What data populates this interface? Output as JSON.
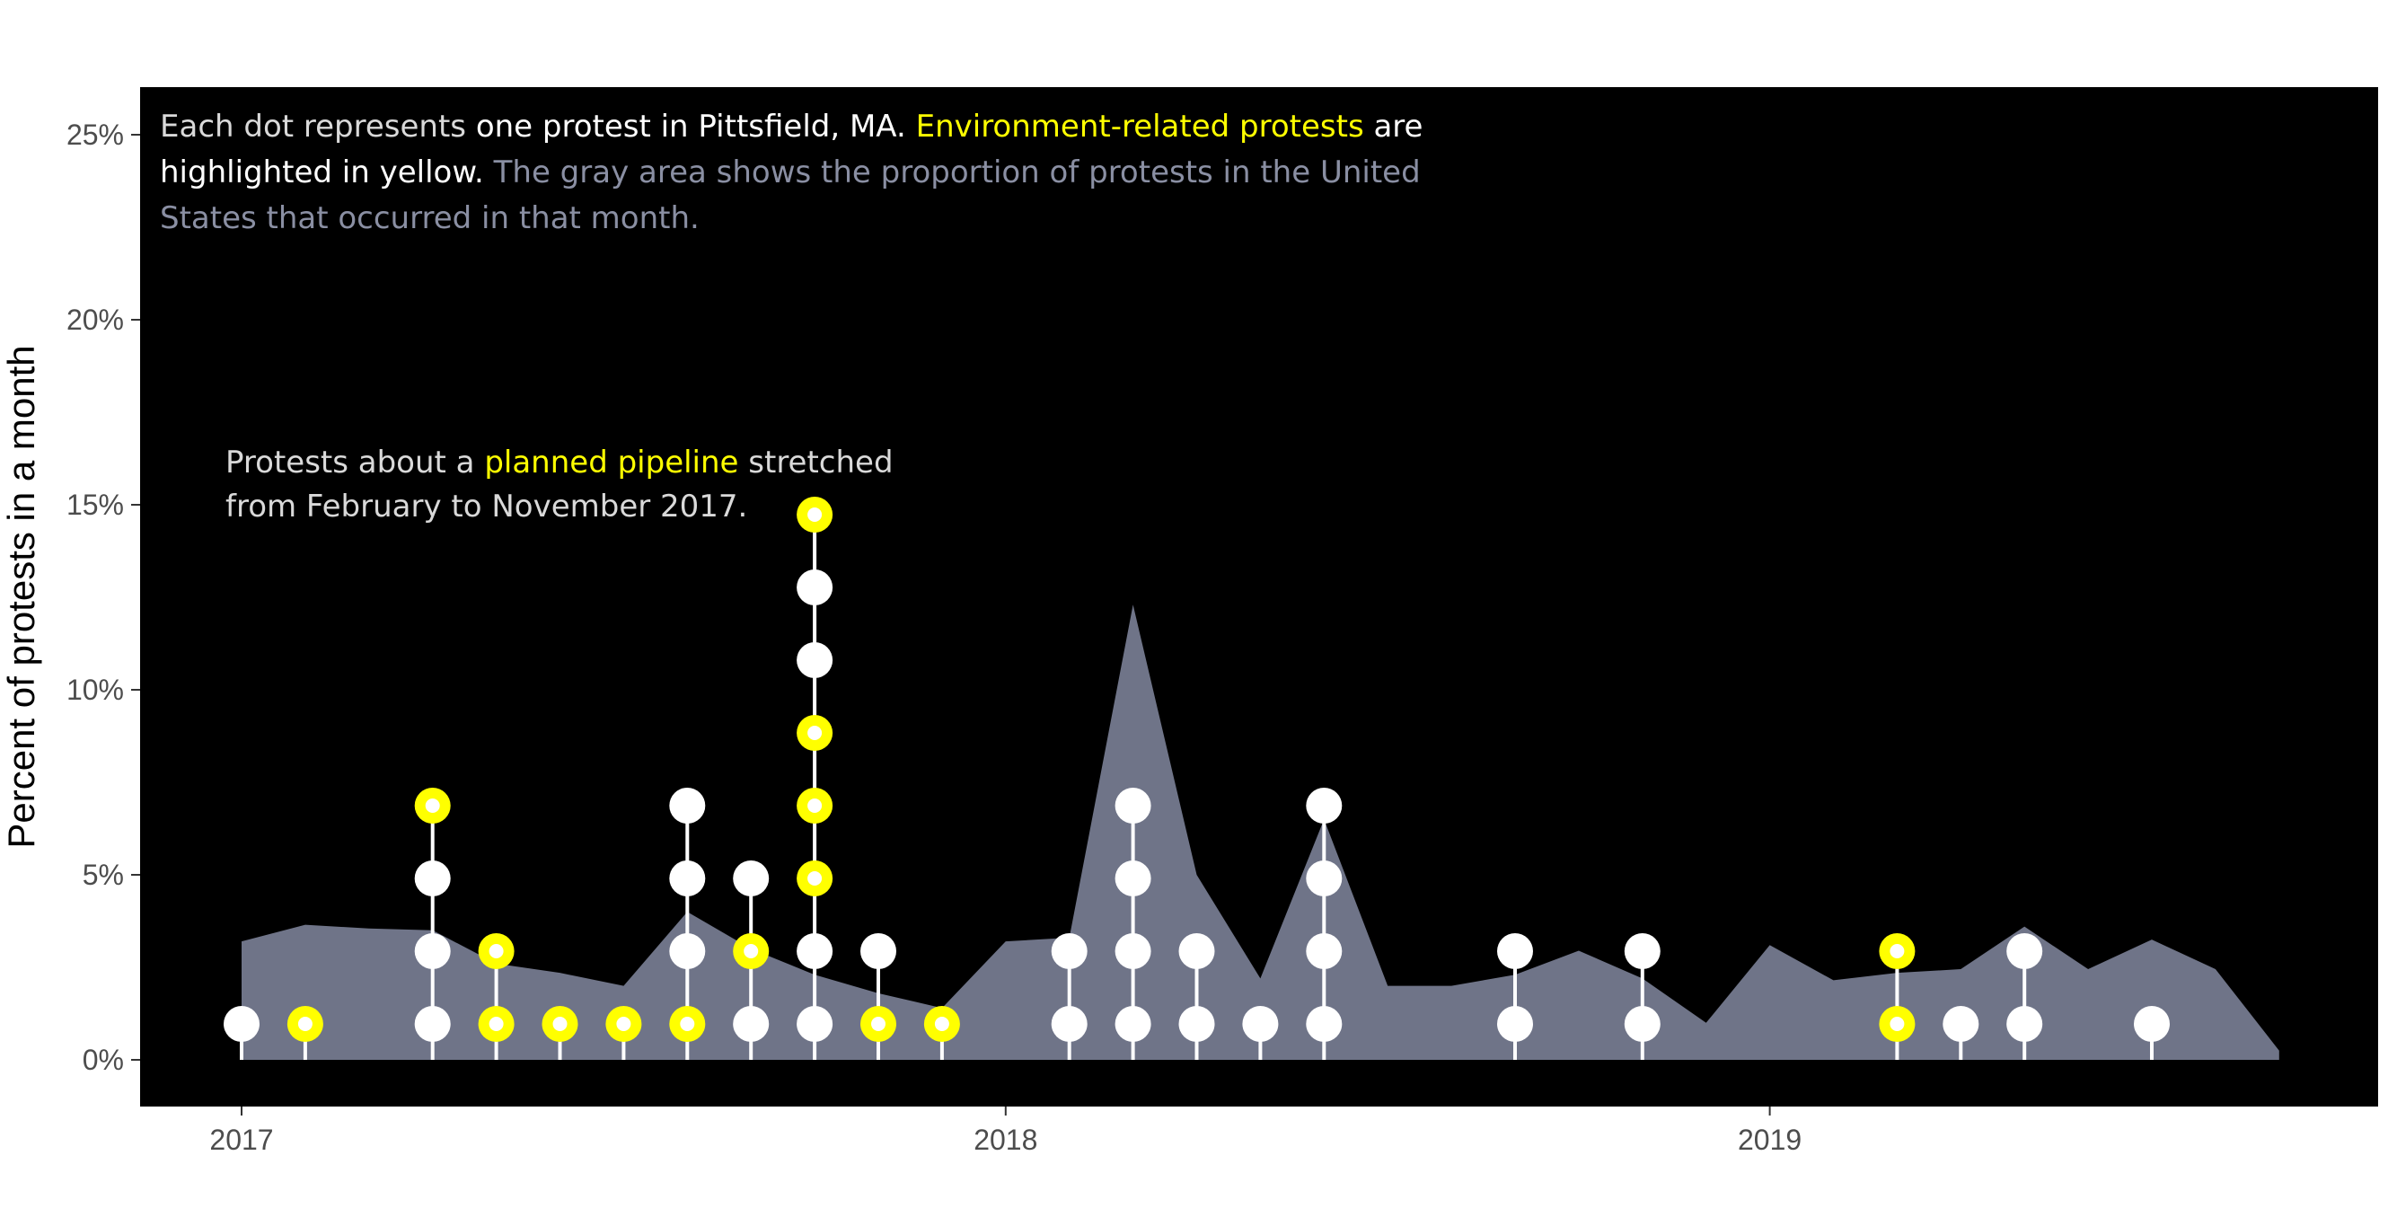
{
  "chart_data": {
    "type": "area",
    "ylabel": "Percent of protests in a month",
    "ylim": [
      0,
      25
    ],
    "y_ticks": [
      "0%",
      "5%",
      "10%",
      "15%",
      "20%",
      "25%"
    ],
    "y_tick_values": [
      0,
      5,
      10,
      15,
      20,
      25
    ],
    "x_ticks": [
      "2017",
      "2018",
      "2019"
    ],
    "x_tick_values": [
      "2017-01",
      "2018-01",
      "2019-01"
    ],
    "xlim": [
      "2016-12",
      "2019-11"
    ],
    "background": "#000000",
    "colors": {
      "area": "#6f7488",
      "dot": "#ffffff",
      "environment": "#ffff00",
      "stem": "#ffffff"
    },
    "annotation_main": [
      {
        "text": "Each dot represents ",
        "color": "#d9d9d9"
      },
      {
        "text": "one protest in Pittsfield, MA.",
        "color": "#ffffff"
      },
      {
        "text": " ",
        "color": "#d9d9d9"
      },
      {
        "text": "Environment-related protests",
        "color": "#ffff00"
      },
      {
        "text": " are",
        "color": "#ffffff"
      },
      {
        "text": "highlighted in yellow.",
        "color": "#ffffff"
      },
      {
        "text": " The gray area shows the proportion of protests in the United",
        "color": "#8a8fa3"
      },
      {
        "text": "States that occurred in that month.",
        "color": "#8a8fa3"
      }
    ],
    "annotation_pipeline": [
      {
        "text": "Protests about a ",
        "color": "#d9d9d9"
      },
      {
        "text": "planned pipeline",
        "color": "#ffff00"
      },
      {
        "text": " stretched",
        "color": "#d9d9d9"
      },
      {
        "text": "from February to November 2017.",
        "color": "#d9d9d9"
      }
    ],
    "us_share_series": {
      "name": "",
      "x": [
        "2017-01",
        "2017-02",
        "2017-03",
        "2017-04",
        "2017-05",
        "2017-06",
        "2017-07",
        "2017-08",
        "2017-09",
        "2017-10",
        "2017-11",
        "2017-12",
        "2018-01",
        "2018-02",
        "2018-03",
        "2018-04",
        "2018-05",
        "2018-06",
        "2018-07",
        "2018-08",
        "2018-09",
        "2018-10",
        "2018-11",
        "2018-12",
        "2019-01",
        "2019-02",
        "2019-03",
        "2019-04",
        "2019-05",
        "2019-06",
        "2019-07",
        "2019-08",
        "2019-09",
        "2019-10",
        "2019-11"
      ],
      "values": [
        3.2,
        3.65,
        3.55,
        3.5,
        2.6,
        2.35,
        2.0,
        4.0,
        3.0,
        2.3,
        1.8,
        1.4,
        3.2,
        3.3,
        12.3,
        5.0,
        2.2,
        6.5,
        2.0,
        2.0,
        2.3,
        2.95,
        2.2,
        1.0,
        3.1,
        2.15,
        2.35,
        2.45,
        3.6,
        2.45,
        3.25,
        2.45,
        0.25,
        null,
        null
      ]
    },
    "protest_dots": [
      {
        "month": "2017-01",
        "protests": [
          "other"
        ]
      },
      {
        "month": "2017-02",
        "protests": [
          "environment"
        ]
      },
      {
        "month": "2017-04",
        "protests": [
          "other",
          "other",
          "other",
          "environment"
        ]
      },
      {
        "month": "2017-05",
        "protests": [
          "environment",
          "environment"
        ]
      },
      {
        "month": "2017-06",
        "protests": [
          "environment"
        ]
      },
      {
        "month": "2017-07",
        "protests": [
          "environment"
        ]
      },
      {
        "month": "2017-08",
        "protests": [
          "environment",
          "other",
          "other",
          "other"
        ]
      },
      {
        "month": "2017-09",
        "protests": [
          "other",
          "environment",
          "other"
        ]
      },
      {
        "month": "2017-10",
        "protests": [
          "other",
          "other",
          "environment",
          "environment",
          "environment",
          "other",
          "other",
          "environment"
        ]
      },
      {
        "month": "2017-11",
        "protests": [
          "environment",
          "other"
        ]
      },
      {
        "month": "2017-12",
        "protests": [
          "environment"
        ]
      },
      {
        "month": "2018-02",
        "protests": [
          "other",
          "other"
        ]
      },
      {
        "month": "2018-03",
        "protests": [
          "other",
          "other",
          "other",
          "other"
        ]
      },
      {
        "month": "2018-04",
        "protests": [
          "other",
          "other"
        ]
      },
      {
        "month": "2018-05",
        "protests": [
          "other"
        ]
      },
      {
        "month": "2018-06",
        "protests": [
          "other",
          "other",
          "other",
          "other"
        ]
      },
      {
        "month": "2018-09",
        "protests": [
          "other",
          "other"
        ]
      },
      {
        "month": "2018-11",
        "protests": [
          "other",
          "other"
        ]
      },
      {
        "month": "2019-03",
        "protests": [
          "environment",
          "environment"
        ]
      },
      {
        "month": "2019-04",
        "protests": [
          "other"
        ]
      },
      {
        "month": "2019-05",
        "protests": [
          "other",
          "other"
        ]
      },
      {
        "month": "2019-07",
        "protests": [
          "other"
        ]
      }
    ]
  }
}
